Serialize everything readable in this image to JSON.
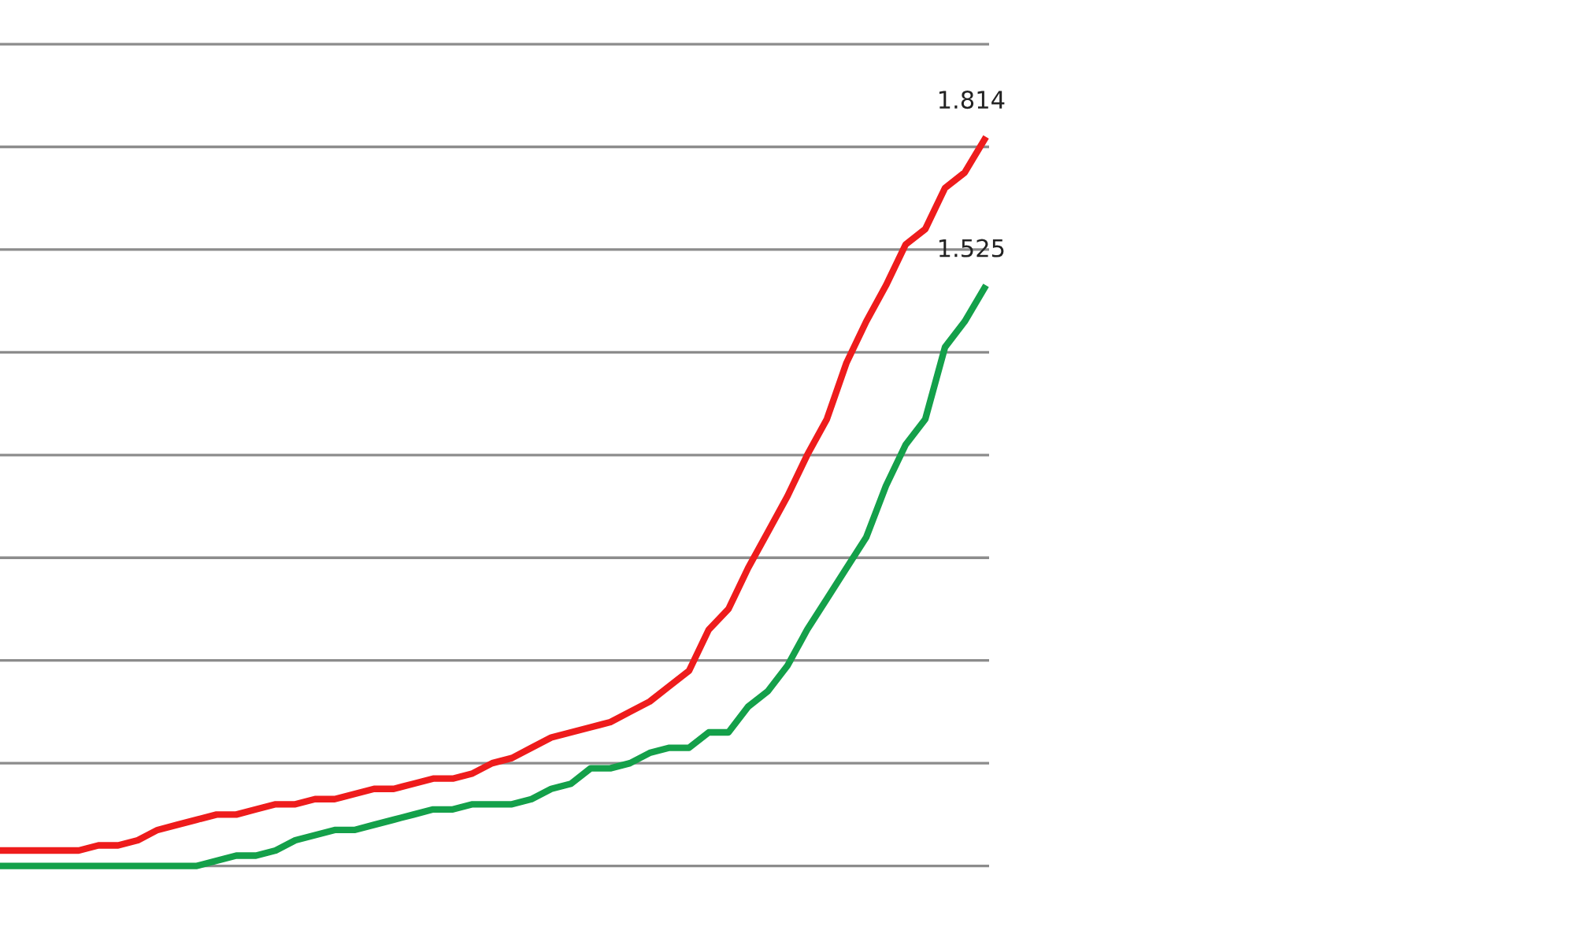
{
  "chart_data": {
    "type": "line",
    "categories": [
      null,
      null,
      null,
      null,
      null,
      null,
      null,
      null,
      null,
      null,
      null,
      null,
      null,
      null,
      null,
      null,
      null,
      null,
      null,
      null,
      null,
      null,
      null,
      null,
      null,
      null,
      null,
      null,
      null,
      null,
      null,
      null,
      null,
      null,
      null,
      null,
      null,
      null,
      null,
      null,
      null,
      null,
      null,
      null,
      null,
      null,
      null,
      null,
      null,
      null,
      null
    ],
    "series": [
      {
        "color": "#ee1c1c",
        "values": [
          0.43,
          0.43,
          0.43,
          0.43,
          0.43,
          0.44,
          0.44,
          0.45,
          0.47,
          0.48,
          0.49,
          0.5,
          0.5,
          0.51,
          0.52,
          0.52,
          0.53,
          0.53,
          0.54,
          0.55,
          0.55,
          0.56,
          0.57,
          0.57,
          0.58,
          0.6,
          0.61,
          0.63,
          0.65,
          0.66,
          0.67,
          0.68,
          0.7,
          0.72,
          0.75,
          0.78,
          0.86,
          0.9,
          0.98,
          1.05,
          1.12,
          1.2,
          1.27,
          1.38,
          1.46,
          1.53,
          1.61,
          1.64,
          1.72,
          1.75,
          1.814
        ],
        "value_labels": [
          null,
          null,
          null,
          null,
          null,
          null,
          null,
          null,
          null,
          null,
          null,
          null,
          null,
          null,
          null,
          null,
          null,
          null,
          null,
          null,
          null,
          null,
          null,
          null,
          null,
          null,
          null,
          null,
          null,
          null,
          null,
          null,
          null,
          null,
          null,
          null,
          null,
          null,
          null,
          null,
          null,
          null,
          null,
          null,
          null,
          null,
          null,
          null,
          null,
          null,
          "1.814"
        ]
      },
      {
        "color": "#14a04a",
        "values": [
          0.4,
          0.4,
          0.4,
          0.4,
          0.4,
          0.4,
          0.4,
          0.4,
          0.4,
          0.4,
          0.4,
          0.41,
          0.42,
          0.42,
          0.43,
          0.45,
          0.46,
          0.47,
          0.47,
          0.48,
          0.49,
          0.5,
          0.51,
          0.51,
          0.52,
          0.52,
          0.52,
          0.53,
          0.55,
          0.56,
          0.59,
          0.59,
          0.6,
          0.62,
          0.63,
          0.63,
          0.66,
          0.66,
          0.71,
          0.74,
          0.79,
          0.86,
          0.92,
          0.98,
          1.04,
          1.14,
          1.22,
          1.27,
          1.41,
          1.46,
          1.525
        ],
        "value_labels": [
          null,
          null,
          null,
          null,
          null,
          null,
          null,
          null,
          null,
          null,
          null,
          null,
          null,
          null,
          null,
          null,
          null,
          null,
          null,
          null,
          null,
          null,
          null,
          null,
          null,
          null,
          null,
          null,
          null,
          null,
          null,
          null,
          null,
          null,
          null,
          null,
          null,
          null,
          null,
          null,
          null,
          null,
          null,
          null,
          null,
          null,
          null,
          null,
          null,
          null,
          "1.525"
        ]
      }
    ],
    "yticks": [
      {
        "value": 0.4,
        "label": null
      },
      {
        "value": 0.6,
        "label": null
      },
      {
        "value": 0.8,
        "label": null
      },
      {
        "value": 1.0,
        "label": null
      },
      {
        "value": 1.2,
        "label": null
      },
      {
        "value": 1.4,
        "label": null
      },
      {
        "value": 1.6,
        "label": null
      },
      {
        "value": 1.8,
        "label": null
      },
      {
        "value": 2.0,
        "label": null
      }
    ],
    "grid": "y",
    "legend": false,
    "marker": "none",
    "line_style": "solid"
  }
}
